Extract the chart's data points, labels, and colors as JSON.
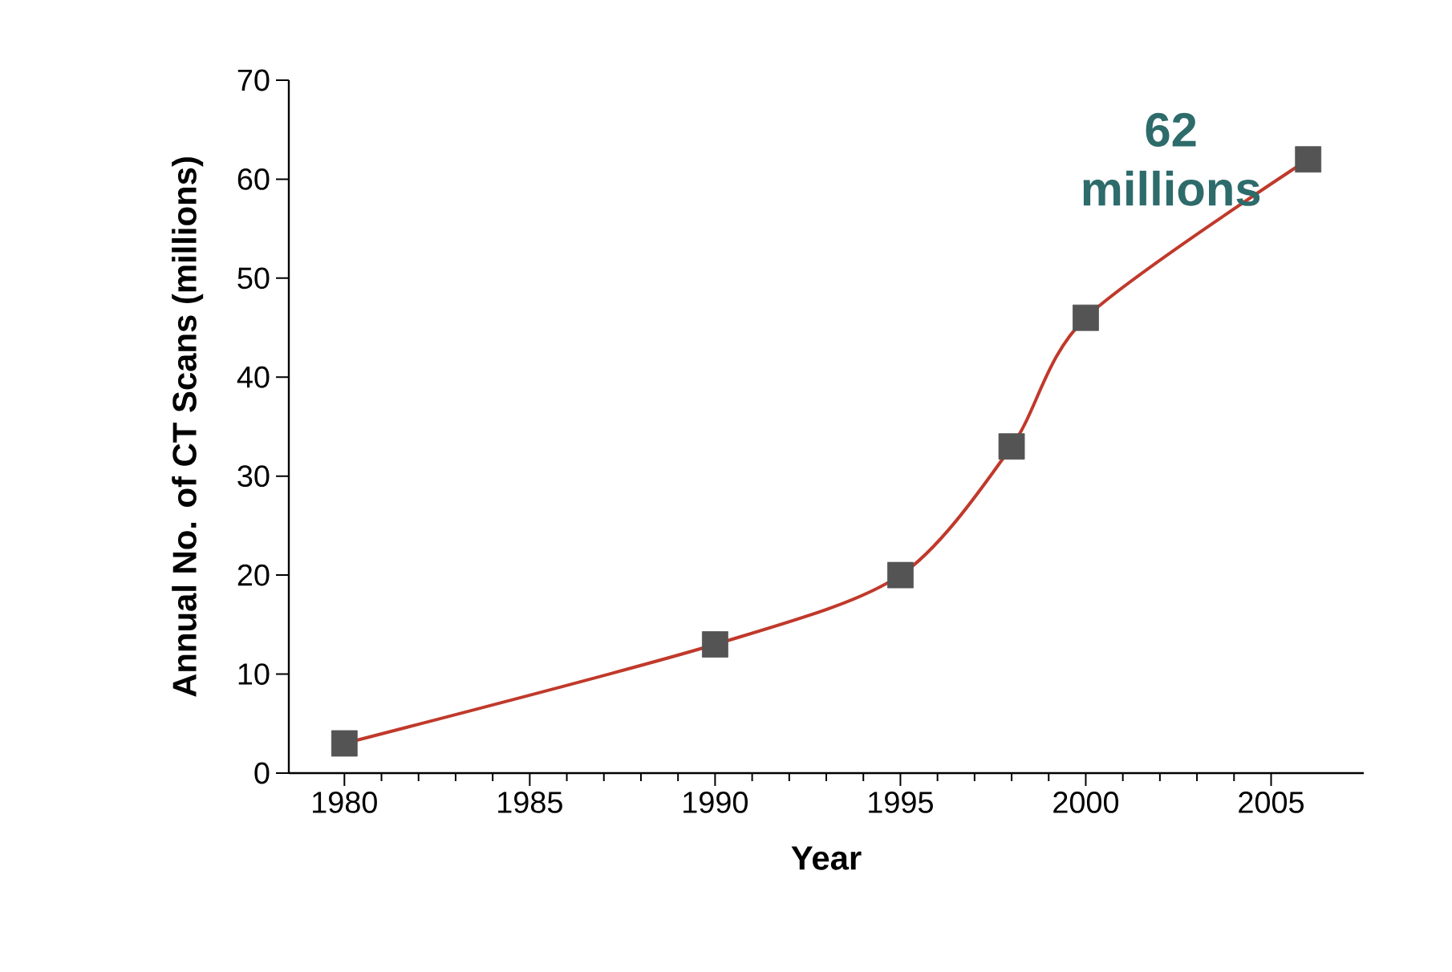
{
  "chart_data": {
    "type": "line",
    "xlabel": "Year",
    "ylabel": "Annual No. of CT Scans (millions)",
    "x": [
      1980,
      1990,
      1995,
      1998,
      2000,
      2006
    ],
    "series": [
      {
        "color": "#c0392b",
        "values": [
          3,
          13,
          20,
          33,
          46,
          62
        ]
      }
    ],
    "xlim": [
      1978.5,
      2007.5
    ],
    "xticks": [
      1980,
      1985,
      1990,
      1995,
      2000,
      2005
    ],
    "ylim": [
      0,
      70
    ],
    "yticks": [
      0,
      10,
      20,
      30,
      40,
      50,
      60,
      70
    ],
    "marker": "square",
    "line_style": "solid",
    "grid": false,
    "annotations": [
      {
        "text": "62 millions",
        "x": 2006,
        "y": 62
      }
    ]
  }
}
